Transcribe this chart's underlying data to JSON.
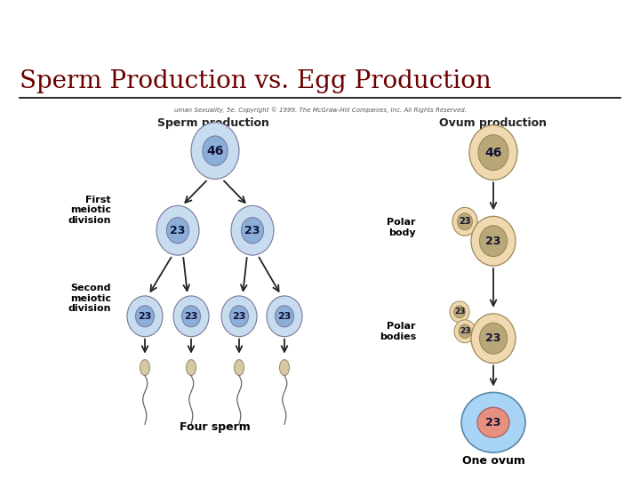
{
  "title": "Sperm Production vs. Egg Production",
  "title_fontsize": 20,
  "title_color": "#6B0000",
  "bg_top_color": "#9B9B5B",
  "bg_bar_color": "#7B0000",
  "subtitle_text": "uman Sexuality, 5e. Copyright © 1999. The McGraw-Hill Companies, Inc. All Rights Reserved.",
  "sperm_header": "Sperm production",
  "ovum_header": "Ovum production",
  "first_meiotic": "First\nmeiotic\ndivision",
  "second_meiotic": "Second\nmeiotic\ndivision",
  "polar_body": "Polar\nbody",
  "polar_bodies": "Polar\nbodies",
  "four_sperm": "Four sperm",
  "one_ovum": "One ovum",
  "cell_blue_outer": "#C8DCF0",
  "cell_blue_inner": "#8AAED8",
  "cell_tan_outer": "#F0D8B0",
  "cell_tan_inner": "#B8A878",
  "cell_light_blue": "#A8D4F5",
  "cell_pink": "#E89080",
  "sperm_head_color": "#D8C8A0",
  "arrow_color": "#222222",
  "label_color": "#000000",
  "header_label_color": "#222222"
}
